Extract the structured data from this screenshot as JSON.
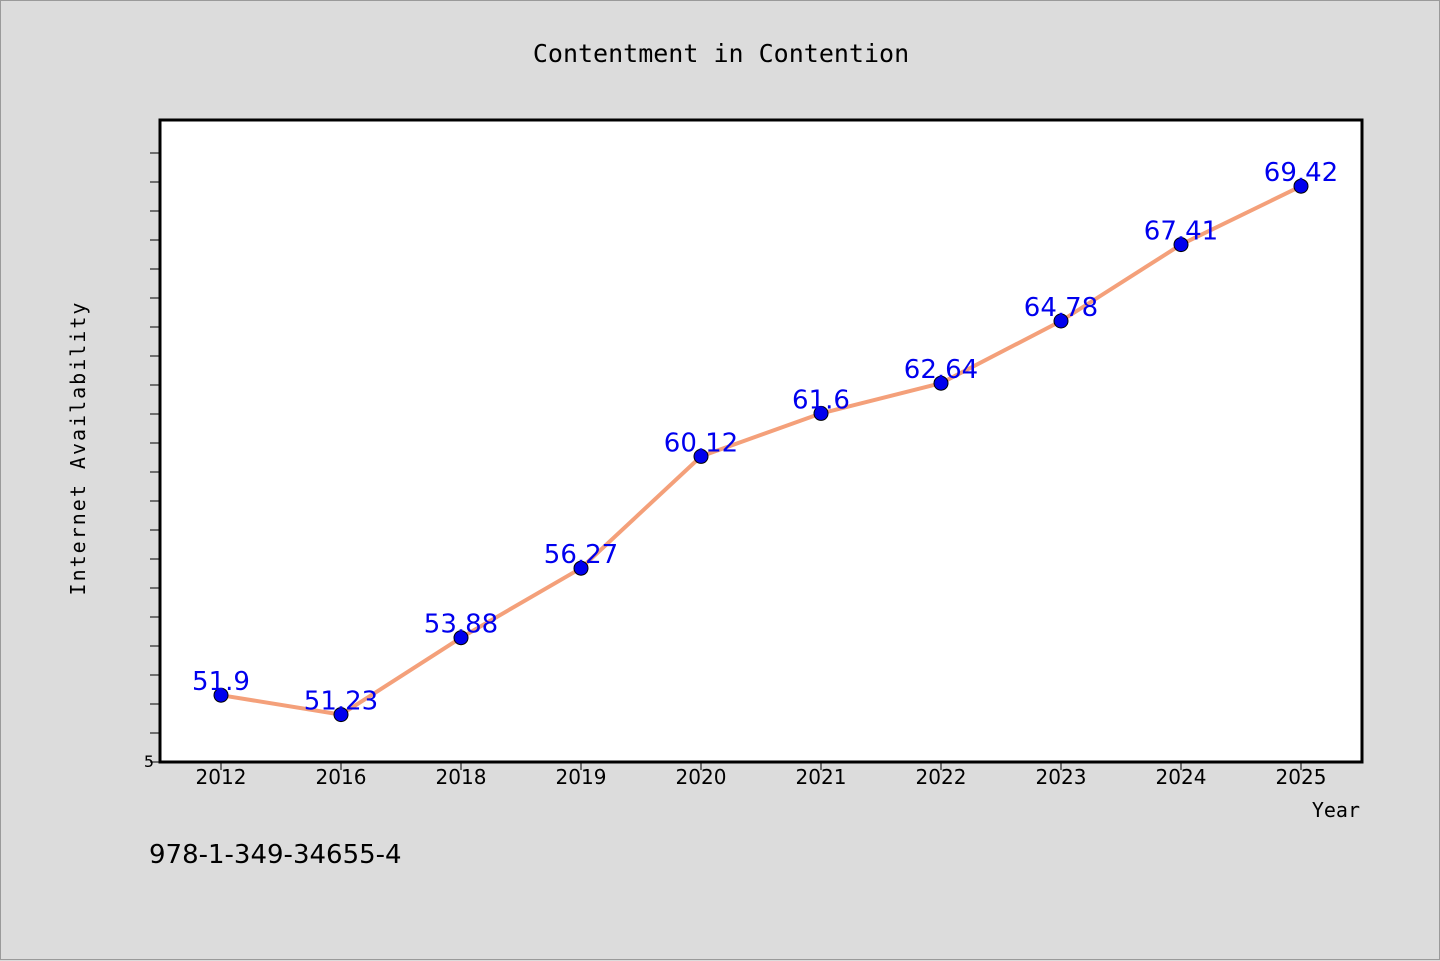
{
  "chart_data": {
    "type": "line",
    "title": "Contentment in Contention",
    "xlabel": "Year",
    "ylabel": "Internet Availability",
    "categories": [
      "2012",
      "2016",
      "2018",
      "2019",
      "2020",
      "2021",
      "2022",
      "2023",
      "2024",
      "2025"
    ],
    "series": [
      {
        "values": [
          51.9,
          51.23,
          53.88,
          56.27,
          60.12,
          61.6,
          62.64,
          64.78,
          67.41,
          69.42
        ],
        "labels": [
          "51.9",
          "51.23",
          "53.88",
          "56.27",
          "60.12",
          "61.6",
          "62.64",
          "64.78",
          "67.41",
          "69.42"
        ]
      }
    ],
    "y_tick_label": "5",
    "ylim": [
      49.6,
      71.7
    ],
    "grid": false,
    "legend": "none",
    "colors": {
      "line": "#f4a07a",
      "marker": "#0000ee",
      "data_label": "#0000ee",
      "axis": "#000000",
      "background": "#dcdcdc",
      "plot_background": "#ffffff"
    }
  },
  "footer_text": "978-1-349-34655-4"
}
